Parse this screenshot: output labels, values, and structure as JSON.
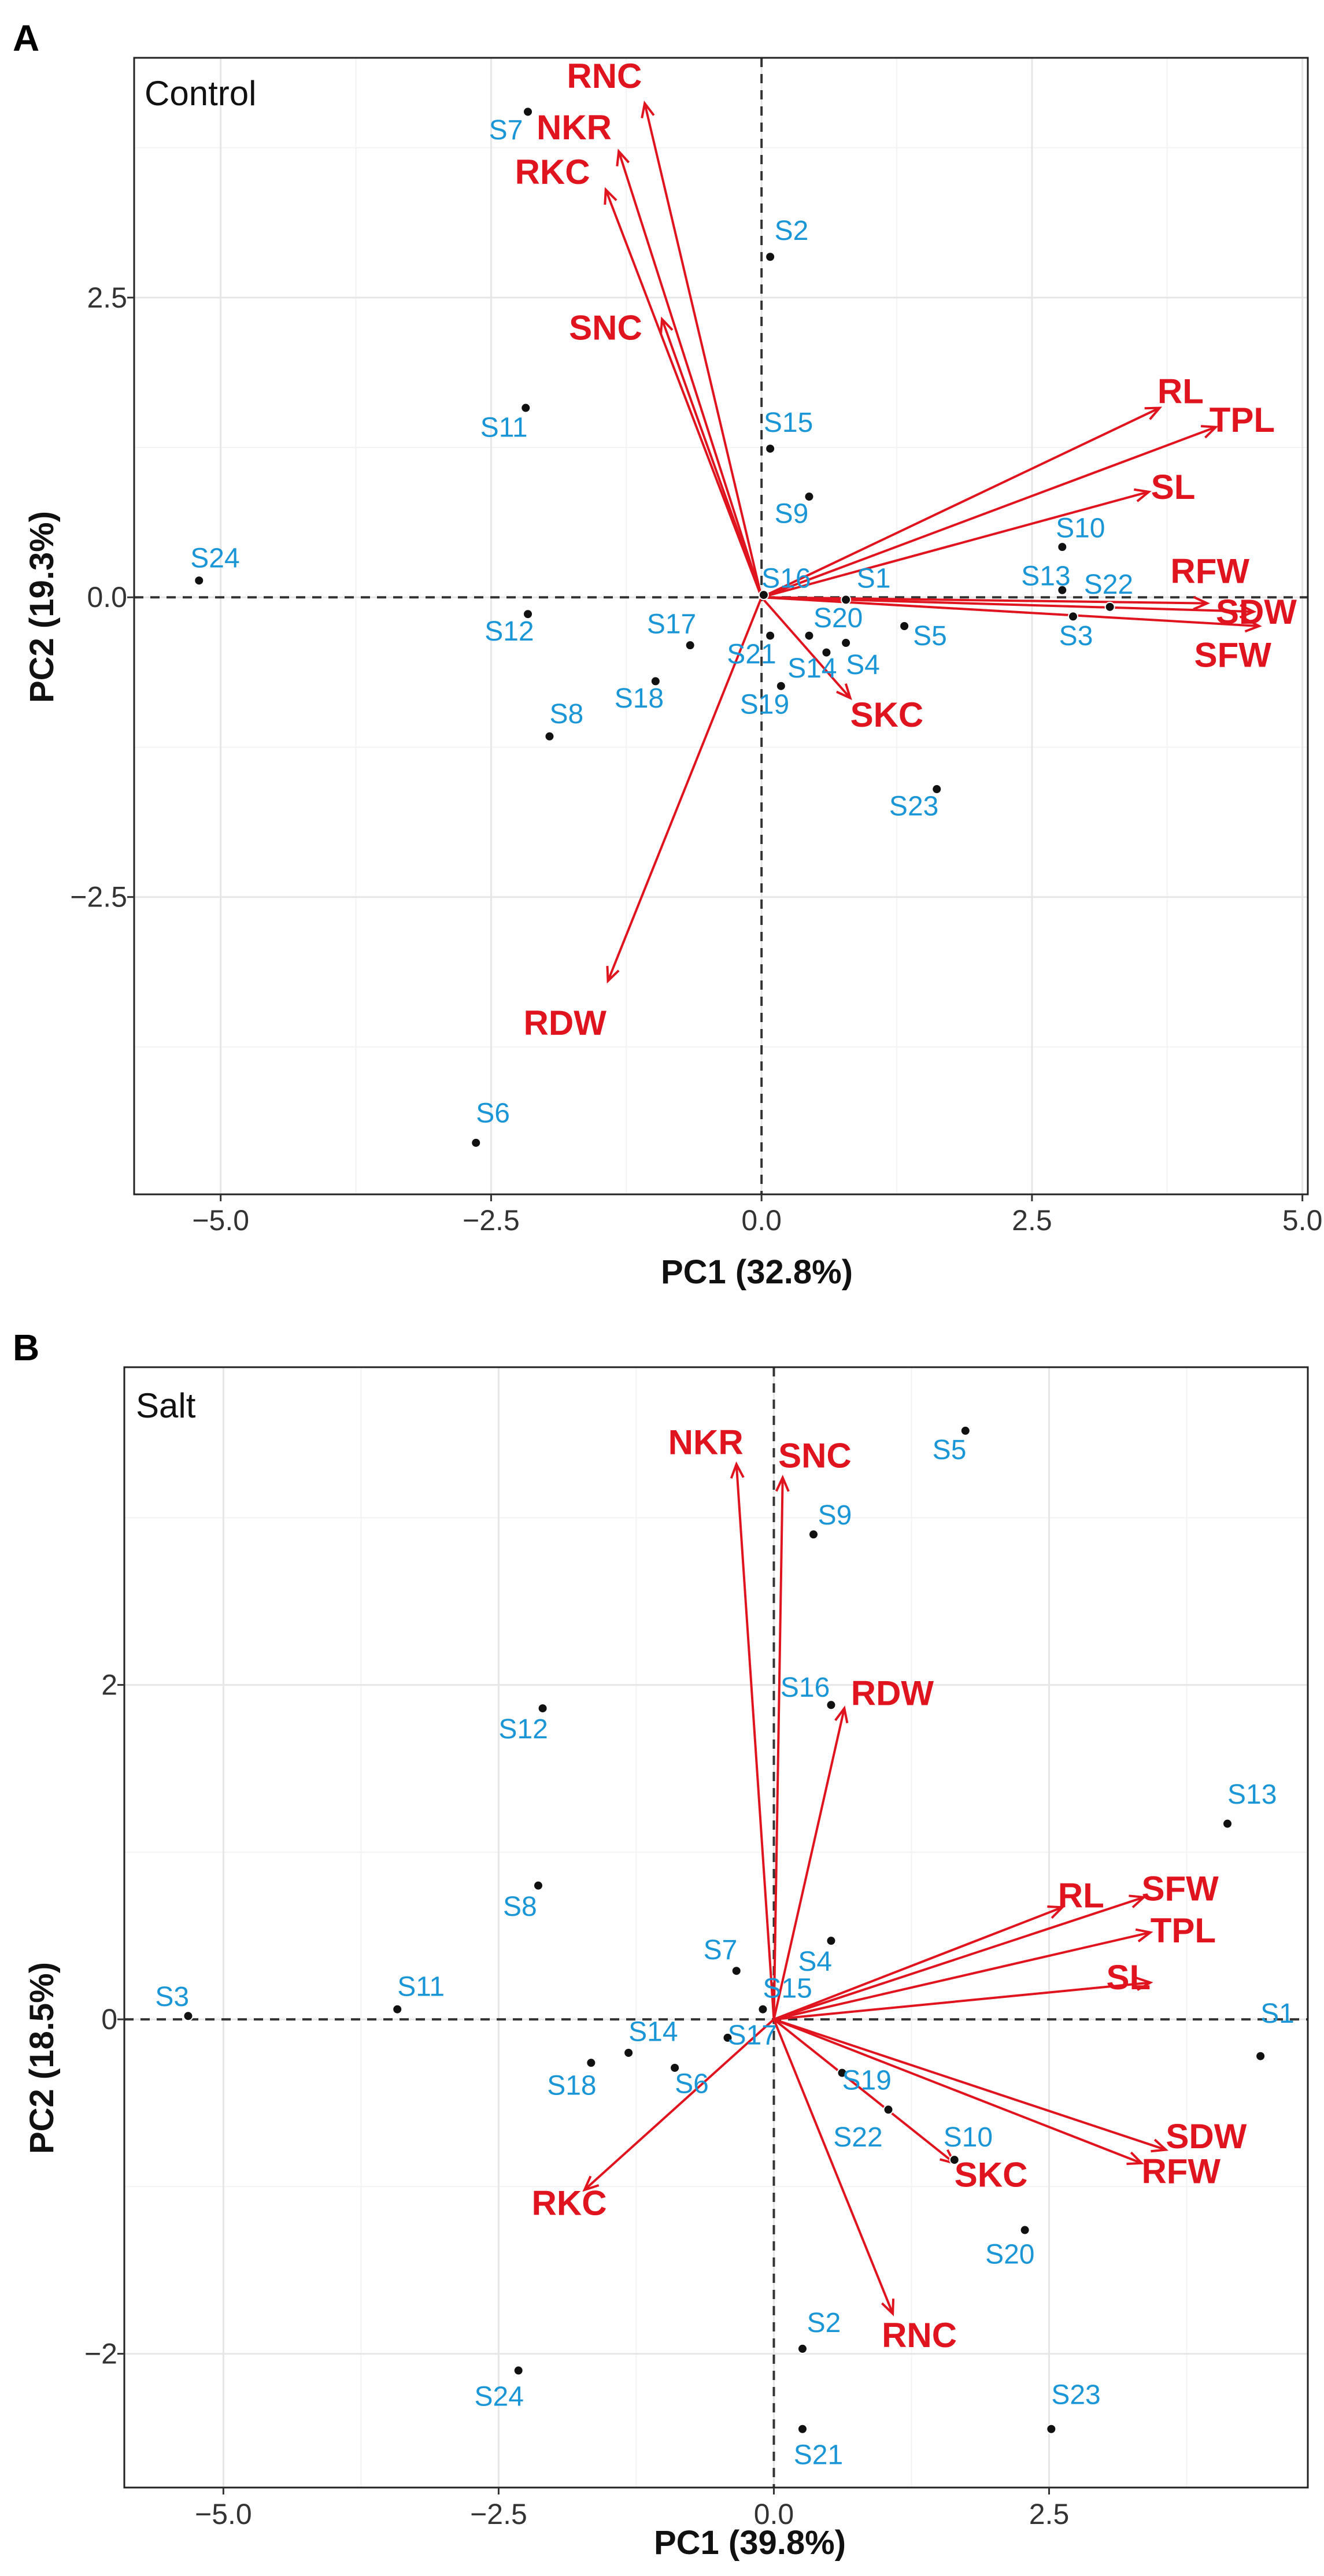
{
  "colors": {
    "vector": "#e0141e",
    "sample_label": "#1a96d6",
    "point": "#111111",
    "grid_major": "#e6e6e6",
    "grid_minor": "#f3f3f3",
    "frame": "#222222"
  },
  "chart_data": [
    {
      "id": "A",
      "type": "scatter",
      "panel_letter": "A",
      "subtitle": "Control",
      "xlabel": "PC1 (32.8%)",
      "ylabel": "PC2 (19.3%)",
      "xlim": [
        -5.8,
        5.05
      ],
      "ylim": [
        -4.98,
        4.5
      ],
      "xticks": [
        {
          "value": -5.0,
          "label": "−5.0"
        },
        {
          "value": -2.5,
          "label": "−2.5"
        },
        {
          "value": 0.0,
          "label": "0.0"
        },
        {
          "value": 2.5,
          "label": "2.5"
        },
        {
          "value": 5.0,
          "label": "5.0"
        }
      ],
      "yticks": [
        {
          "value": -2.5,
          "label": "−2.5"
        },
        {
          "value": 0.0,
          "label": "0.0"
        },
        {
          "value": 2.5,
          "label": "2.5"
        }
      ],
      "minor_x": [
        -3.75,
        -1.25,
        1.25,
        3.75
      ],
      "minor_y": [
        -3.75,
        -1.25,
        1.25,
        3.75
      ],
      "samples": [
        {
          "name": "S1",
          "x": 0.78,
          "y": -0.02,
          "lx": 0.88,
          "ly": 0.08,
          "anchor": "start"
        },
        {
          "name": "S2",
          "x": 0.08,
          "y": 2.84,
          "lx": 0.12,
          "ly": 2.98,
          "anchor": "start"
        },
        {
          "name": "S3",
          "x": 2.88,
          "y": -0.16,
          "lx": 2.75,
          "ly": -0.4,
          "anchor": "start"
        },
        {
          "name": "S4",
          "x": 0.78,
          "y": -0.38,
          "lx": 0.78,
          "ly": -0.64,
          "anchor": "start"
        },
        {
          "name": "S5",
          "x": 1.32,
          "y": -0.24,
          "lx": 1.4,
          "ly": -0.4,
          "anchor": "start"
        },
        {
          "name": "S6",
          "x": -2.64,
          "y": -4.55,
          "lx": -2.64,
          "ly": -4.38,
          "anchor": "start"
        },
        {
          "name": "S7",
          "x": -2.16,
          "y": 4.05,
          "lx": -2.52,
          "ly": 3.82,
          "anchor": "start"
        },
        {
          "name": "S8",
          "x": -1.96,
          "y": -1.16,
          "lx": -1.96,
          "ly": -1.05,
          "anchor": "start"
        },
        {
          "name": "S9",
          "x": 0.44,
          "y": 0.84,
          "lx": 0.12,
          "ly": 0.62,
          "anchor": "start"
        },
        {
          "name": "S10",
          "x": 2.78,
          "y": 0.42,
          "lx": 2.72,
          "ly": 0.5,
          "anchor": "start"
        },
        {
          "name": "S11",
          "x": -2.18,
          "y": 1.58,
          "lx": -2.6,
          "ly": 1.34,
          "anchor": "start"
        },
        {
          "name": "S12",
          "x": -2.16,
          "y": -0.14,
          "lx": -2.56,
          "ly": -0.36,
          "anchor": "start"
        },
        {
          "name": "S13",
          "x": 2.78,
          "y": 0.06,
          "lx": 2.4,
          "ly": 0.1,
          "anchor": "start"
        },
        {
          "name": "S14",
          "x": 0.6,
          "y": -0.46,
          "lx": 0.24,
          "ly": -0.67,
          "anchor": "start"
        },
        {
          "name": "S15",
          "x": 0.08,
          "y": 1.24,
          "lx": 0.02,
          "ly": 1.38,
          "anchor": "start"
        },
        {
          "name": "S16",
          "x": 0.02,
          "y": 0.02,
          "lx": 0.0,
          "ly": 0.08,
          "anchor": "start"
        },
        {
          "name": "S17",
          "x": -0.66,
          "y": -0.4,
          "lx": -1.06,
          "ly": -0.3,
          "anchor": "start"
        },
        {
          "name": "S18",
          "x": -0.98,
          "y": -0.7,
          "lx": -1.36,
          "ly": -0.92,
          "anchor": "start"
        },
        {
          "name": "S19",
          "x": 0.18,
          "y": -0.74,
          "lx": -0.2,
          "ly": -0.97,
          "anchor": "start"
        },
        {
          "name": "S20",
          "x": 0.44,
          "y": -0.32,
          "lx": 0.48,
          "ly": -0.25,
          "anchor": "start"
        },
        {
          "name": "S21",
          "x": 0.08,
          "y": -0.32,
          "lx": -0.32,
          "ly": -0.55,
          "anchor": "start"
        },
        {
          "name": "S22",
          "x": 3.22,
          "y": -0.08,
          "lx": 2.98,
          "ly": 0.03,
          "anchor": "start"
        },
        {
          "name": "S23",
          "x": 1.62,
          "y": -1.6,
          "lx": 1.18,
          "ly": -1.82,
          "anchor": "start"
        },
        {
          "name": "S24",
          "x": -5.2,
          "y": 0.14,
          "lx": -5.28,
          "ly": 0.25,
          "anchor": "start"
        }
      ],
      "vectors": [
        {
          "name": "RNC",
          "x": -1.08,
          "y": 4.12,
          "lx": -1.8,
          "ly": 4.25,
          "anchor": "start"
        },
        {
          "name": "NKR",
          "x": -1.32,
          "y": 3.72,
          "lx": -2.08,
          "ly": 3.82,
          "anchor": "start"
        },
        {
          "name": "RKC",
          "x": -1.44,
          "y": 3.4,
          "lx": -2.28,
          "ly": 3.45,
          "anchor": "start"
        },
        {
          "name": "SNC",
          "x": -0.92,
          "y": 2.32,
          "lx": -1.78,
          "ly": 2.15,
          "anchor": "start"
        },
        {
          "name": "RL",
          "x": 3.68,
          "y": 1.58,
          "lx": 3.66,
          "ly": 1.62,
          "anchor": "start"
        },
        {
          "name": "TPL",
          "x": 4.2,
          "y": 1.42,
          "lx": 4.14,
          "ly": 1.38,
          "anchor": "start"
        },
        {
          "name": "SL",
          "x": 3.58,
          "y": 0.88,
          "lx": 3.6,
          "ly": 0.82,
          "anchor": "start"
        },
        {
          "name": "RFW",
          "x": 4.12,
          "y": -0.05,
          "lx": 3.78,
          "ly": 0.12,
          "anchor": "start"
        },
        {
          "name": "SDW",
          "x": 4.55,
          "y": -0.12,
          "lx": 4.2,
          "ly": -0.22,
          "anchor": "start"
        },
        {
          "name": "SFW",
          "x": 4.6,
          "y": -0.24,
          "lx": 4.0,
          "ly": -0.58,
          "anchor": "start"
        },
        {
          "name": "SKC",
          "x": 0.82,
          "y": -0.84,
          "lx": 0.82,
          "ly": -1.08,
          "anchor": "start"
        },
        {
          "name": "RDW",
          "x": -1.42,
          "y": -3.2,
          "lx": -2.2,
          "ly": -3.65,
          "anchor": "start"
        }
      ]
    },
    {
      "id": "B",
      "type": "scatter",
      "panel_letter": "B",
      "subtitle": "Salt",
      "xlabel": "PC1 (39.8%)",
      "ylabel": "PC2 (18.5%)",
      "xlim": [
        -5.9,
        4.85
      ],
      "ylim": [
        -2.8,
        3.9
      ],
      "xticks": [
        {
          "value": -5.0,
          "label": "−5.0"
        },
        {
          "value": -2.5,
          "label": "−2.5"
        },
        {
          "value": 0.0,
          "label": "0.0"
        },
        {
          "value": 2.5,
          "label": "2.5"
        }
      ],
      "yticks": [
        {
          "value": -2.0,
          "label": "−2"
        },
        {
          "value": 0.0,
          "label": "0"
        },
        {
          "value": 2.0,
          "label": "2"
        }
      ],
      "minor_x": [
        -3.75,
        -1.25,
        1.25,
        3.75
      ],
      "minor_y": [
        -1.0,
        1.0,
        3.0
      ],
      "samples": [
        {
          "name": "S1",
          "x": 4.42,
          "y": -0.22,
          "lx": 4.42,
          "ly": -0.02,
          "anchor": "start"
        },
        {
          "name": "S2",
          "x": 0.26,
          "y": -1.97,
          "lx": 0.3,
          "ly": -1.87,
          "anchor": "start"
        },
        {
          "name": "S3",
          "x": -5.32,
          "y": 0.02,
          "lx": -5.62,
          "ly": 0.08,
          "anchor": "start"
        },
        {
          "name": "S4",
          "x": 0.52,
          "y": 0.47,
          "lx": 0.22,
          "ly": 0.29,
          "anchor": "start"
        },
        {
          "name": "S5",
          "x": 1.74,
          "y": 3.52,
          "lx": 1.44,
          "ly": 3.35,
          "anchor": "start"
        },
        {
          "name": "S6",
          "x": -0.9,
          "y": -0.29,
          "lx": -0.9,
          "ly": -0.44,
          "anchor": "start"
        },
        {
          "name": "S7",
          "x": -0.34,
          "y": 0.29,
          "lx": -0.64,
          "ly": 0.36,
          "anchor": "start"
        },
        {
          "name": "S8",
          "x": -2.14,
          "y": 0.8,
          "lx": -2.46,
          "ly": 0.62,
          "anchor": "start"
        },
        {
          "name": "S9",
          "x": 0.36,
          "y": 2.9,
          "lx": 0.4,
          "ly": 2.96,
          "anchor": "start"
        },
        {
          "name": "S10",
          "x": 1.64,
          "y": -0.84,
          "lx": 1.54,
          "ly": -0.76,
          "anchor": "start"
        },
        {
          "name": "S11",
          "x": -3.42,
          "y": 0.06,
          "lx": -3.42,
          "ly": 0.14,
          "anchor": "start"
        },
        {
          "name": "S12",
          "x": -2.1,
          "y": 1.86,
          "lx": -2.5,
          "ly": 1.68,
          "anchor": "start"
        },
        {
          "name": "S13",
          "x": 4.12,
          "y": 1.17,
          "lx": 4.12,
          "ly": 1.29,
          "anchor": "start"
        },
        {
          "name": "S14",
          "x": -1.32,
          "y": -0.2,
          "lx": -1.32,
          "ly": -0.13,
          "anchor": "start"
        },
        {
          "name": "S15",
          "x": -0.1,
          "y": 0.06,
          "lx": -0.1,
          "ly": 0.13,
          "anchor": "start"
        },
        {
          "name": "S16",
          "x": 0.52,
          "y": 1.88,
          "lx": 0.06,
          "ly": 1.93,
          "anchor": "start"
        },
        {
          "name": "S17",
          "x": -0.42,
          "y": -0.11,
          "lx": -0.42,
          "ly": -0.15,
          "anchor": "start"
        },
        {
          "name": "S18",
          "x": -1.66,
          "y": -0.26,
          "lx": -2.06,
          "ly": -0.45,
          "anchor": "start"
        },
        {
          "name": "S19",
          "x": 0.62,
          "y": -0.32,
          "lx": 0.62,
          "ly": -0.42,
          "anchor": "start"
        },
        {
          "name": "S20",
          "x": 2.28,
          "y": -1.26,
          "lx": 1.92,
          "ly": -1.46,
          "anchor": "start"
        },
        {
          "name": "S21",
          "x": 0.26,
          "y": -2.45,
          "lx": 0.18,
          "ly": -2.66,
          "anchor": "start"
        },
        {
          "name": "S22",
          "x": 1.04,
          "y": -0.54,
          "lx": 0.54,
          "ly": -0.76,
          "anchor": "start"
        },
        {
          "name": "S23",
          "x": 2.52,
          "y": -2.45,
          "lx": 2.52,
          "ly": -2.3,
          "anchor": "start"
        },
        {
          "name": "S24",
          "x": -2.32,
          "y": -2.1,
          "lx": -2.72,
          "ly": -2.31,
          "anchor": "start"
        }
      ],
      "vectors": [
        {
          "name": "NKR",
          "x": -0.34,
          "y": 3.32,
          "lx": -0.96,
          "ly": 3.38,
          "anchor": "start"
        },
        {
          "name": "SNC",
          "x": 0.08,
          "y": 3.24,
          "lx": 0.04,
          "ly": 3.3,
          "anchor": "start"
        },
        {
          "name": "RDW",
          "x": 0.64,
          "y": 1.86,
          "lx": 0.7,
          "ly": 1.88,
          "anchor": "start"
        },
        {
          "name": "RL",
          "x": 2.62,
          "y": 0.67,
          "lx": 2.58,
          "ly": 0.67,
          "anchor": "start"
        },
        {
          "name": "SFW",
          "x": 3.36,
          "y": 0.73,
          "lx": 3.34,
          "ly": 0.71,
          "anchor": "start"
        },
        {
          "name": "TPL",
          "x": 3.42,
          "y": 0.52,
          "lx": 3.42,
          "ly": 0.46,
          "anchor": "start"
        },
        {
          "name": "SL",
          "x": 3.42,
          "y": 0.22,
          "lx": 3.02,
          "ly": 0.18,
          "anchor": "start"
        },
        {
          "name": "SDW",
          "x": 3.56,
          "y": -0.78,
          "lx": 3.56,
          "ly": -0.77,
          "anchor": "start"
        },
        {
          "name": "RFW",
          "x": 3.34,
          "y": -0.86,
          "lx": 3.34,
          "ly": -0.98,
          "anchor": "start"
        },
        {
          "name": "SKC",
          "x": 1.64,
          "y": -0.86,
          "lx": 1.64,
          "ly": -1.0,
          "anchor": "start"
        },
        {
          "name": "RNC",
          "x": 1.08,
          "y": -1.76,
          "lx": 0.98,
          "ly": -1.96,
          "anchor": "start"
        },
        {
          "name": "RKC",
          "x": -1.72,
          "y": -1.02,
          "lx": -2.2,
          "ly": -1.17,
          "anchor": "start"
        }
      ]
    }
  ]
}
